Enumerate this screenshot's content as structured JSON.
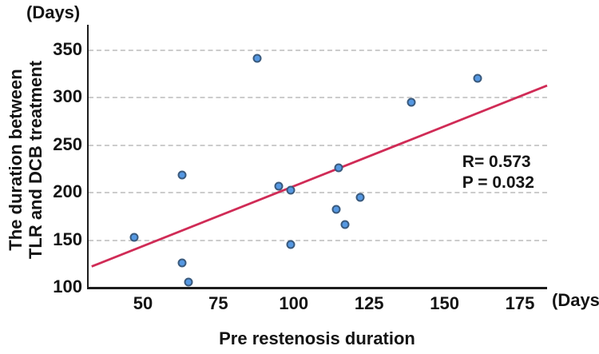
{
  "figure": {
    "y_unit_label": "(Days)",
    "x_unit_label": "(Days)",
    "y_axis_title_line1": "The duration between",
    "y_axis_title_line2": "TLR and DCB treatment",
    "x_axis_title": "Pre restenosis duration",
    "annotation_line1": "R= 0.573",
    "annotation_line2": "P = 0.032"
  },
  "chart_data": {
    "type": "scatter",
    "title": "",
    "xlabel": "Pre restenosis duration (Days)",
    "ylabel": "The duration between TLR and DCB treatment (Days)",
    "x_ticks": [
      50,
      75,
      100,
      125,
      150,
      175
    ],
    "y_ticks": [
      350,
      300,
      250,
      200,
      150,
      100
    ],
    "xlim": [
      32,
      184
    ],
    "ylim": [
      100,
      376
    ],
    "grid": "horizontal-dashed",
    "legend": "none",
    "points": [
      [
        47,
        152
      ],
      [
        63,
        125
      ],
      [
        63,
        218
      ],
      [
        65,
        105
      ],
      [
        88,
        341
      ],
      [
        95,
        206
      ],
      [
        99,
        145
      ],
      [
        99,
        202
      ],
      [
        114,
        182
      ],
      [
        115,
        225
      ],
      [
        117,
        166
      ],
      [
        122,
        194
      ],
      [
        139,
        294
      ],
      [
        161,
        320
      ]
    ],
    "regression_line": {
      "x1": 33,
      "y1": 121.5,
      "x2": 184,
      "y2": 312
    },
    "stats": {
      "R": 0.573,
      "P": 0.032
    },
    "colors": {
      "point_fill": "#5598e2",
      "point_stroke": "#3a5a7d",
      "line": "#d02b56",
      "grid": "#cccccc",
      "axis": "#1c1c1c"
    }
  }
}
